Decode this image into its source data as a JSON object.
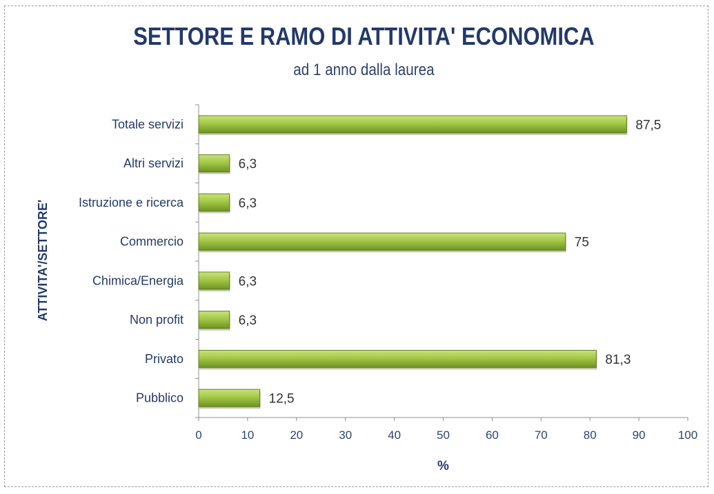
{
  "chart_data": {
    "type": "bar",
    "orientation": "horizontal",
    "title": "SETTORE E RAMO DI ATTIVITA' ECONOMICA",
    "subtitle": "ad 1 anno dalla laurea",
    "xlabel": "%",
    "ylabel": "ATTIVITA'/SETTORE'",
    "xlim": [
      0,
      100
    ],
    "xticks": [
      "0",
      "10",
      "20",
      "30",
      "40",
      "50",
      "60",
      "70",
      "80",
      "90",
      "100"
    ],
    "categories": [
      "Totale servizi",
      "Altri servizi",
      "Istruzione e ricerca",
      "Commercio",
      "Chimica/Energia",
      "Non profit",
      "Privato",
      "Pubblico"
    ],
    "values": [
      87.5,
      6.3,
      6.3,
      75,
      6.3,
      6.3,
      81.3,
      12.5
    ],
    "data_labels": [
      "87,5",
      "6,3",
      "6,3",
      "75",
      "6,3",
      "6,3",
      "81,3",
      "12,5"
    ],
    "bar_color": "#9cc23c",
    "grid": false
  }
}
